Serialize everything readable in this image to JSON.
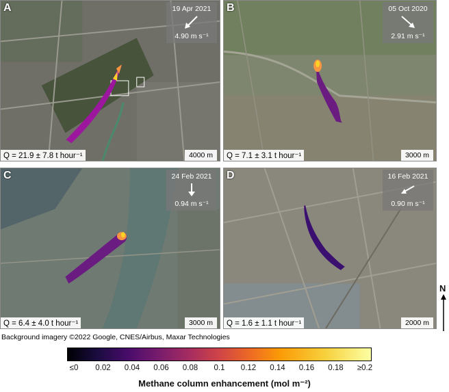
{
  "panels": [
    {
      "label": "A",
      "date": "19 Apr 2021",
      "wind_speed": "4.90 m s⁻¹",
      "emission": "Q = 21.9 ± 7.8 t hour⁻¹",
      "scale": "4000 m"
    },
    {
      "label": "B",
      "date": "05 Oct 2020",
      "wind_speed": "2.91 m s⁻¹",
      "emission": "Q = 7.1 ± 3.1 t hour⁻¹",
      "scale": "3000 m"
    },
    {
      "label": "C",
      "date": "24 Feb 2021",
      "wind_speed": "0.94 m s⁻¹",
      "emission": "Q = 6.4 ± 4.0 t hour⁻¹",
      "scale": "3000 m"
    },
    {
      "label": "D",
      "date": "16 Feb 2021",
      "wind_speed": "0.90 m s⁻¹",
      "emission": "Q = 1.6 ± 1.1 t hour⁻¹",
      "scale": "2000 m"
    }
  ],
  "north_label": "N",
  "attribution": "Background imagery ©2022 Google, CNES/Airbus, Maxar Technologies",
  "colorbar": {
    "ticks": [
      "≤0",
      "0.02",
      "0.04",
      "0.06",
      "0.08",
      "0.1",
      "0.12",
      "0.14",
      "0.16",
      "0.18",
      "≥0.2"
    ],
    "label": "Methane column enhancement (mol m⁻²)"
  }
}
